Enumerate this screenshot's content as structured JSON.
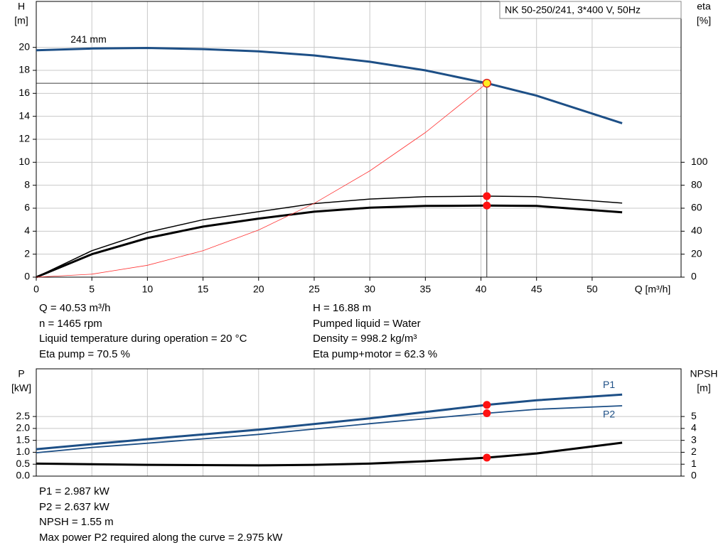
{
  "chart_data": [
    {
      "type": "line",
      "title": "NK 50-250/241, 3*400 V, 50Hz",
      "y_label": [
        "H",
        "[m]"
      ],
      "y2_label": [
        "eta",
        "[%]"
      ],
      "x_label": "Q [m³/h]",
      "xlim": [
        0,
        58
      ],
      "xticks": [
        0,
        5,
        10,
        15,
        20,
        25,
        30,
        35,
        40,
        45,
        50
      ],
      "ylim": [
        0,
        24
      ],
      "yticks": [
        0,
        2,
        4,
        6,
        8,
        10,
        12,
        14,
        16,
        18,
        20
      ],
      "y2lim": [
        0,
        240
      ],
      "y2ticks": [
        0,
        20,
        40,
        60,
        80,
        100
      ],
      "grid": true,
      "operating_point": {
        "x": 40.53
      },
      "crosshair": true,
      "series": [
        {
          "name": "241 mm",
          "color": "#1d4f86",
          "width": 3,
          "dot_color": "#ffee22",
          "x": [
            0,
            5,
            10,
            15,
            20,
            25,
            30,
            35,
            40.53,
            45,
            52.7
          ],
          "values": [
            19.75,
            19.9,
            19.95,
            19.85,
            19.65,
            19.3,
            18.75,
            18.0,
            16.88,
            15.8,
            13.4
          ]
        },
        {
          "color": "#000000",
          "width": 1.5,
          "axis": "y2",
          "dot_color": "#ff1111",
          "x": [
            0,
            5,
            10,
            15,
            20,
            25,
            30,
            35,
            40.53,
            45,
            52.7
          ],
          "values": [
            0,
            23,
            39,
            50,
            57,
            64,
            68,
            70,
            70.5,
            70,
            64.5
          ]
        },
        {
          "color": "#000000",
          "width": 3,
          "axis": "y2",
          "dot_color": "#ff1111",
          "x": [
            0,
            5,
            10,
            15,
            20,
            25,
            30,
            35,
            40.53,
            45,
            52.7
          ],
          "values": [
            0,
            20,
            34,
            44,
            51,
            57,
            60.5,
            62,
            62.3,
            62,
            56.5
          ]
        },
        {
          "color": "#ff3333",
          "width": 0.8,
          "x": [
            0,
            5,
            10,
            15,
            20,
            25,
            30,
            35,
            40.53
          ],
          "values": [
            0,
            0.26,
            1.03,
            2.31,
            4.11,
            6.42,
            9.25,
            12.59,
            16.88
          ]
        }
      ]
    },
    {
      "type": "line",
      "y_label": [
        "P",
        "[kW]"
      ],
      "y2_label": [
        "NPSH",
        "[m]"
      ],
      "xlim": [
        0,
        58
      ],
      "ylim": [
        0,
        4.5
      ],
      "yticks": [
        {
          "value": 0,
          "label": "0.0"
        },
        0.5,
        {
          "value": 1,
          "label": "1.0"
        },
        1.5,
        {
          "value": 2,
          "label": "2.0"
        },
        2.5
      ],
      "y2lim": [
        0,
        9
      ],
      "y2ticks": [
        0,
        1,
        2,
        3,
        4,
        5
      ],
      "grid": true,
      "operating_point": {
        "x": 40.53
      },
      "series": [
        {
          "name": "P1",
          "color": "#1d4f86",
          "width": 3,
          "dot_color": "#ff1111",
          "x": [
            0,
            5,
            10,
            20,
            30,
            40.53,
            45,
            52.7
          ],
          "values": [
            1.13,
            1.34,
            1.55,
            1.95,
            2.42,
            2.987,
            3.18,
            3.42
          ]
        },
        {
          "name": "P2",
          "color": "#1d4f86",
          "width": 1.8,
          "dot_color": "#ff1111",
          "x": [
            0,
            5,
            10,
            20,
            30,
            40.53,
            45,
            52.7
          ],
          "values": [
            0.98,
            1.2,
            1.38,
            1.75,
            2.2,
            2.637,
            2.8,
            2.95
          ]
        },
        {
          "color": "#000000",
          "width": 3,
          "axis": "y2",
          "dot_color": "#ff1111",
          "x": [
            0,
            5,
            10,
            20,
            25,
            30,
            35,
            40.53,
            45,
            52.7
          ],
          "values": [
            1.05,
            1.0,
            0.95,
            0.9,
            0.95,
            1.05,
            1.25,
            1.55,
            1.9,
            2.8
          ]
        }
      ]
    }
  ],
  "info_left": [
    "Q = 40.53 m³/h",
    "n = 1465 rpm",
    "Liquid temperature during operation = 20 °C",
    "Eta pump = 70.5 %"
  ],
  "info_right": [
    "H = 16.88 m",
    "Pumped liquid = Water",
    "Density = 998.2 kg/m³",
    "Eta pump+motor = 62.3 %"
  ],
  "info_bottom": [
    "P1 = 2.987 kW",
    "P2 = 2.637 kW",
    "NPSH = 1.55 m",
    "Max power P2 required along the curve = 2.975 kW"
  ]
}
